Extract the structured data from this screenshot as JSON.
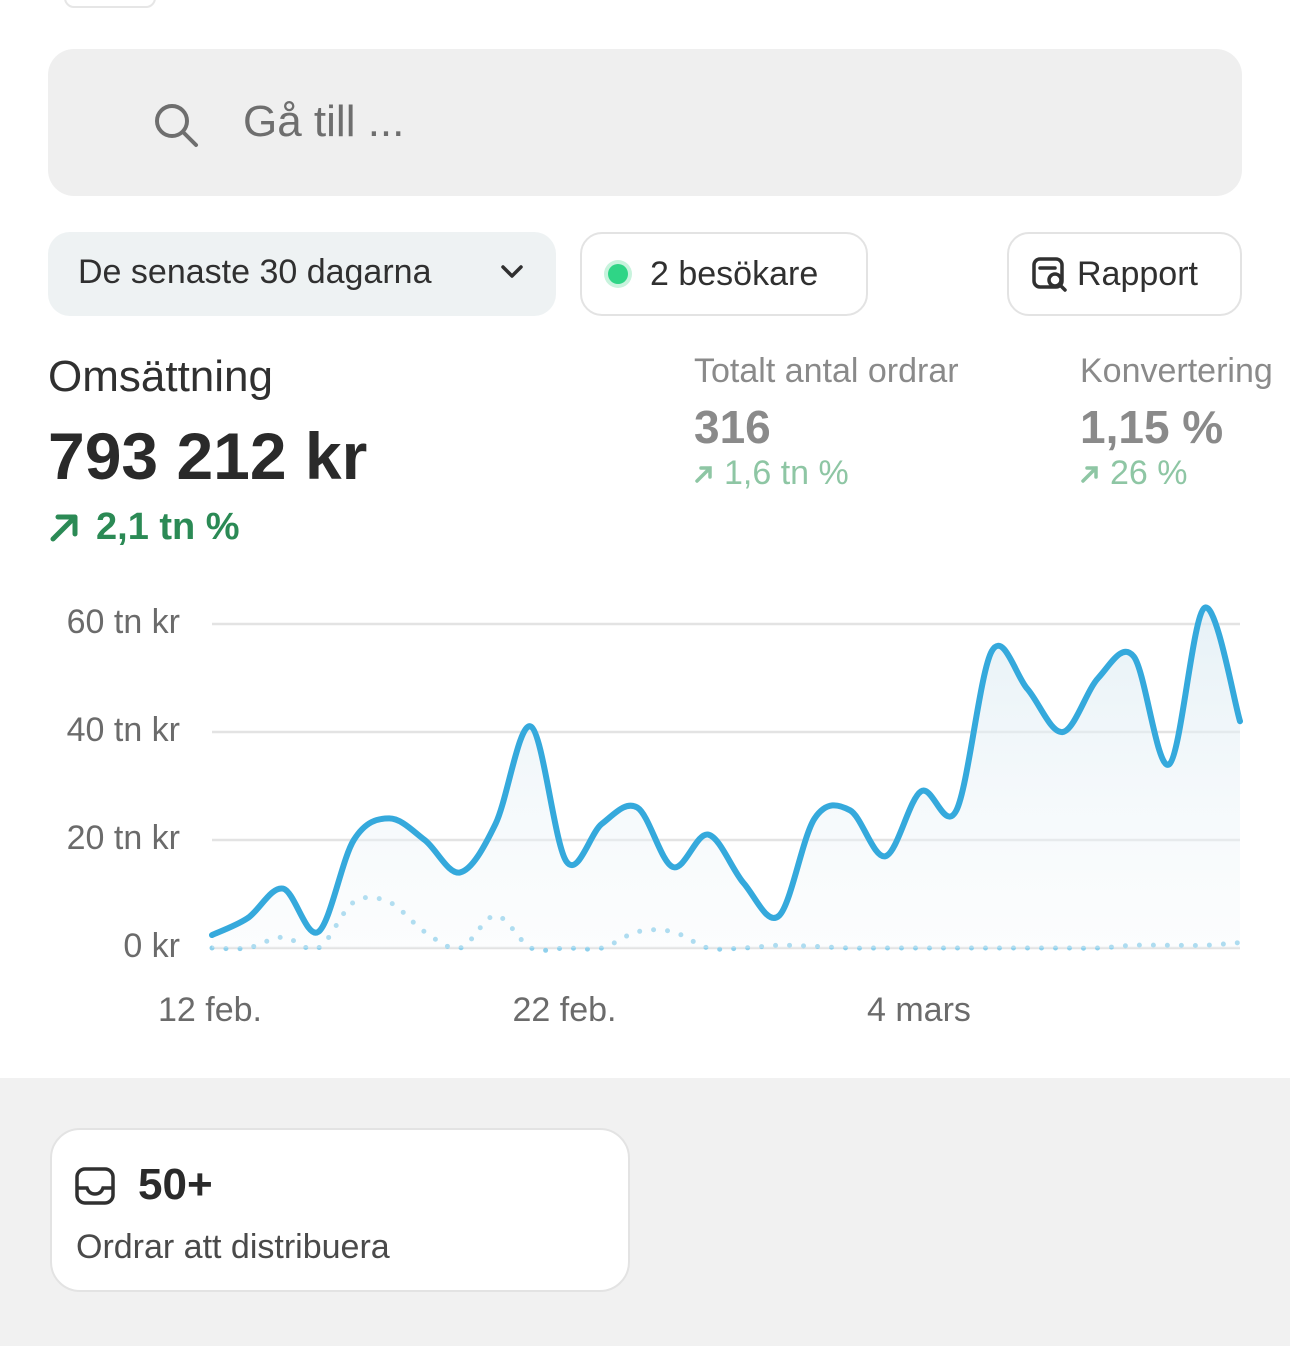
{
  "search": {
    "placeholder": "Gå till ..."
  },
  "filters": {
    "date_range": "De senaste 30 dagarna",
    "visitors": "2 besökare",
    "report": "Rapport"
  },
  "metrics": [
    {
      "label": "Omsättning",
      "value": "793 212 kr",
      "change": "2,1 tn %"
    },
    {
      "label": "Totalt antal ordrar",
      "value": "316",
      "change": "1,6 tn %"
    },
    {
      "label": "Konvertering",
      "value": "1,15 %",
      "change": "26 %"
    }
  ],
  "chart_data": {
    "type": "line",
    "categories": [
      "12 feb.",
      null,
      null,
      null,
      null,
      null,
      null,
      null,
      null,
      null,
      "22 feb.",
      null,
      null,
      null,
      null,
      null,
      null,
      null,
      null,
      null,
      "4 mars",
      null,
      null,
      null,
      null,
      null,
      null,
      null,
      null,
      null
    ],
    "series": [
      {
        "color": "#35a9dc",
        "style": "solid",
        "values": [
          2.4,
          5.5,
          11,
          3,
          20,
          24,
          20,
          14,
          23,
          41,
          16,
          23,
          26,
          15,
          21,
          12,
          6,
          24,
          25.5,
          17,
          29,
          25.5,
          55,
          48,
          40,
          50,
          54,
          34,
          63,
          42
        ]
      },
      {
        "color": "#8fd0ec",
        "style": "dotted",
        "values": [
          0,
          0,
          2,
          0,
          8.5,
          8.5,
          3,
          0,
          6,
          0,
          0,
          0,
          3,
          3,
          0,
          0,
          0.5,
          0.3,
          0,
          0,
          0,
          0,
          0,
          0,
          0,
          0,
          0.5,
          0.5,
          0.5,
          1
        ]
      }
    ],
    "ylim": [
      0,
      60
    ],
    "yticks": [
      {
        "value": 0,
        "label": "0 kr"
      },
      {
        "value": 20,
        "label": "20 tn kr"
      },
      {
        "value": 40,
        "label": "40 tn kr"
      },
      {
        "value": 60,
        "label": "60 tn kr"
      }
    ],
    "grid": true
  },
  "card": {
    "value": "50+",
    "label": "Ordrar att distribuera"
  }
}
